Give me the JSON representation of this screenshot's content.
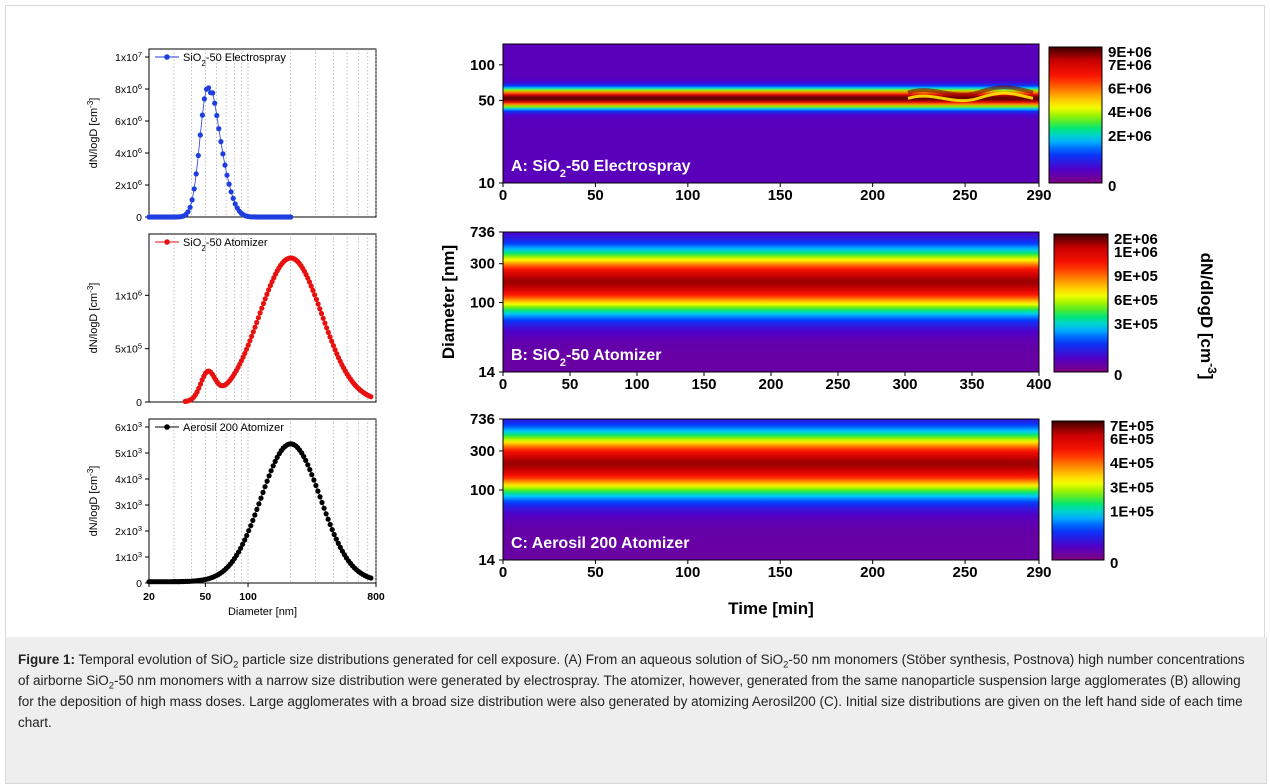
{
  "caption": {
    "label": "Figure 1:",
    "p1": " Temporal evolution of SiO",
    "p2": " particle size distributions generated for cell exposure. (A) From an aqueous solution of SiO",
    "p3": "-50 nm monomers (Stöber synthesis, Postnova) high number concentrations of airborne SiO",
    "p4": "-50 nm monomers with a narrow size distribution were generated by electrospray. The atomizer, however, generated from the same nanoparticle suspension large agglomerates (B) allowing for the deposition of high mass doses. Large agglomerates with a broad size distribution were also generated by atomizing Aerosil200 (C). Initial size distributions are given on the left hand side of each time chart.",
    "sub2": "2"
  },
  "left_axes": {
    "xlabel": "Diameter [nm]",
    "xticks": [
      "20",
      "50",
      "100",
      "800"
    ],
    "ylabel_prefix": "dN/logD [cm",
    "ylabel_suffix": "]",
    "ylabel_exp": "-3"
  },
  "right_axes": {
    "ylabel": "Diameter [nm]",
    "xlabel": "Time [min]",
    "cbar_label": "dN/dlogD [cm",
    "cbar_label_exp": "-3",
    "cbar_label_close": "]"
  },
  "chart_data": [
    {
      "type": "scatter",
      "panel": "left-top",
      "legend": "SiO2-50 Electrospray",
      "legend_pre": "SiO",
      "legend_sub": "2",
      "legend_post": "-50 Electrospray",
      "color": "#1f3ee0",
      "ylim": [
        0,
        10000000
      ],
      "yticks": [
        {
          "v": 0,
          "m": "0",
          "e": ""
        },
        {
          "v": 2000000,
          "m": "2x10",
          "e": "6"
        },
        {
          "v": 4000000,
          "m": "4x10",
          "e": "6"
        },
        {
          "v": 6000000,
          "m": "6x10",
          "e": "6"
        },
        {
          "v": 8000000,
          "m": "8x10",
          "e": "6"
        },
        {
          "v": 10000000,
          "m": "1x10",
          "e": "7"
        }
      ],
      "dist": {
        "peak": 8100000,
        "center": 52,
        "sigma": 0.055,
        "tail": 0.08,
        "xmin": 20,
        "xmax": 200,
        "n": 70
      }
    },
    {
      "type": "scatter",
      "panel": "left-mid",
      "legend": "SiO2-50 Atomizer",
      "legend_pre": "SiO",
      "legend_sub": "2",
      "legend_post": "-50 Atomizer",
      "color": "#e8110f",
      "ylim": [
        0,
        1500000
      ],
      "yticks": [
        {
          "v": 0,
          "m": "0",
          "e": ""
        },
        {
          "v": 500000,
          "m": "5x10",
          "e": "5"
        },
        {
          "v": 1000000,
          "m": "1x10",
          "e": "6"
        }
      ],
      "dist": {
        "peak": 1350000,
        "center": 200,
        "sigma": 0.22,
        "shoulder": 250000,
        "scenter": 52,
        "ssigma": 0.05,
        "xmin": 36,
        "xmax": 736,
        "n": 110
      }
    },
    {
      "type": "scatter",
      "panel": "left-bot",
      "legend": "Aerosil 200 Atomizer",
      "legend_pre": "Aerosil 200 Atomizer",
      "legend_sub": "",
      "legend_post": "",
      "color": "#000000",
      "ylim": [
        0,
        6000
      ],
      "yticks": [
        {
          "v": 0,
          "m": "0",
          "e": ""
        },
        {
          "v": 1000,
          "m": "1x10",
          "e": "3"
        },
        {
          "v": 2000,
          "m": "2x10",
          "e": "3"
        },
        {
          "v": 3000,
          "m": "3x10",
          "e": "3"
        },
        {
          "v": 4000,
          "m": "4x10",
          "e": "3"
        },
        {
          "v": 5000,
          "m": "5x10",
          "e": "3"
        },
        {
          "v": 6000,
          "m": "6x10",
          "e": "3"
        }
      ],
      "dist": {
        "peak": 5300000,
        "center": 200,
        "sigma": 0.21,
        "base": 50,
        "xmin": 20,
        "xmax": 736,
        "n": 110,
        "scale": 0.001
      }
    },
    {
      "type": "heatmap",
      "panel": "A",
      "title_pre": "A: SiO",
      "title_sub": "2",
      "title_post": "-50 Electrospray",
      "xlim": [
        0,
        290
      ],
      "xticks": [
        "0",
        "50",
        "100",
        "150",
        "200",
        "250",
        "290"
      ],
      "ylim": [
        10,
        150
      ],
      "yticks": [
        {
          "v": 10,
          "t": "10"
        },
        {
          "v": 50,
          "t": "50"
        },
        {
          "v": 100,
          "t": "100"
        }
      ],
      "cbar_ticks": [
        "9E+06",
        "7E+06",
        "6E+06",
        "4E+06",
        "2E+06",
        "0"
      ],
      "band_center": 52,
      "band_sigma": 0.055
    },
    {
      "type": "heatmap",
      "panel": "B",
      "title_pre": "B: SiO",
      "title_sub": "2",
      "title_post": "-50 Atomizer",
      "xlim": [
        0,
        400
      ],
      "xticks": [
        "0",
        "50",
        "100",
        "150",
        "200",
        "250",
        "300",
        "350",
        "400"
      ],
      "ylim": [
        14,
        736
      ],
      "yticks": [
        {
          "v": 14,
          "t": "14"
        },
        {
          "v": 100,
          "t": "100"
        },
        {
          "v": 300,
          "t": "300"
        },
        {
          "v": 736,
          "t": "736"
        }
      ],
      "cbar_ticks": [
        "2E+06",
        "1E+06",
        "9E+05",
        "6E+05",
        "3E+05",
        "0"
      ],
      "band_center": 180,
      "band_sigma": 0.26
    },
    {
      "type": "heatmap",
      "panel": "C",
      "title_pre": "C: Aerosil 200 Atomizer",
      "title_sub": "",
      "title_post": "",
      "xlim": [
        0,
        290
      ],
      "xticks": [
        "0",
        "50",
        "100",
        "150",
        "200",
        "250",
        "290"
      ],
      "ylim": [
        14,
        736
      ],
      "yticks": [
        {
          "v": 14,
          "t": "14"
        },
        {
          "v": 100,
          "t": "100"
        },
        {
          "v": 300,
          "t": "300"
        },
        {
          "v": 736,
          "t": "736"
        }
      ],
      "cbar_ticks": [
        "7E+05",
        "6E+05",
        "4E+05",
        "3E+05",
        "1E+05",
        "0"
      ],
      "band_center": 210,
      "band_sigma": 0.26
    }
  ]
}
